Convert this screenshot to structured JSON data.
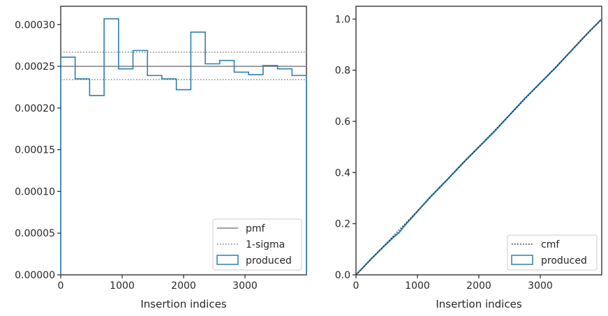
{
  "colors": {
    "produced": "#2e7fb0",
    "pmf": "#808080",
    "sigma": "#808080",
    "cmf": "#1a1a1a",
    "axes": "#262626"
  },
  "chart_data": [
    {
      "type": "histogram-step",
      "xlabel": "Insertion indices",
      "ylabel": "",
      "xlim": [
        0,
        4000
      ],
      "ylim": [
        0,
        0.000322
      ],
      "xticks": [
        0,
        1000,
        2000,
        3000
      ],
      "xtick_labels": [
        "0",
        "1000",
        "2000",
        "3000"
      ],
      "yticks": [
        0,
        5e-05,
        0.0001,
        0.00015,
        0.0002,
        0.00025,
        0.0003
      ],
      "ytick_labels": [
        "0.00000",
        "0.00005",
        "0.00010",
        "0.00015",
        "0.00020",
        "0.00025",
        "0.00030"
      ],
      "bin_edges": [
        0,
        235,
        470,
        706,
        941,
        1176,
        1412,
        1647,
        1882,
        2118,
        2353,
        2588,
        2824,
        3059,
        3294,
        3529,
        3765,
        4000
      ],
      "series": [
        {
          "name": "produced",
          "values": [
            0.000261,
            0.000235,
            0.000215,
            0.000307,
            0.000247,
            0.000269,
            0.000239,
            0.000235,
            0.000222,
            0.000291,
            0.000253,
            0.000257,
            0.000243,
            0.00024,
            0.000251,
            0.000247,
            0.000239
          ]
        }
      ],
      "reference_lines": [
        {
          "name": "pmf",
          "y": 0.00025,
          "style": "solid"
        },
        {
          "name": "1-sigma",
          "y": 0.000267,
          "style": "dotted"
        },
        {
          "name": "",
          "y": 0.000234,
          "style": "dotted"
        }
      ],
      "legend": {
        "placement": "lower-right",
        "entries": [
          "pmf",
          "1-sigma",
          "produced"
        ]
      },
      "grid": false
    },
    {
      "type": "line",
      "xlabel": "Insertion indices",
      "ylabel": "",
      "xlim": [
        0,
        4000
      ],
      "ylim": [
        0,
        1.05
      ],
      "xticks": [
        0,
        1000,
        2000,
        3000
      ],
      "xtick_labels": [
        "0",
        "1000",
        "2000",
        "3000"
      ],
      "yticks": [
        0,
        0.2,
        0.4,
        0.6,
        0.8,
        1.0
      ],
      "ytick_labels": [
        "0.0",
        "0.2",
        "0.4",
        "0.6",
        "0.8",
        "1.0"
      ],
      "series": [
        {
          "name": "cmf",
          "style": "dotted",
          "x": [
            0,
            4000
          ],
          "y": [
            0,
            1.0
          ]
        },
        {
          "name": "produced",
          "style": "step",
          "x": [
            0,
            250,
            500,
            600,
            700,
            800,
            1000,
            1200,
            1500,
            1750,
            2000,
            2250,
            2500,
            2750,
            3000,
            3250,
            3500,
            3750,
            4000
          ],
          "y": [
            0,
            0.063,
            0.122,
            0.145,
            0.165,
            0.195,
            0.248,
            0.302,
            0.376,
            0.44,
            0.5,
            0.56,
            0.625,
            0.69,
            0.75,
            0.81,
            0.875,
            0.94,
            1.0
          ]
        }
      ],
      "legend": {
        "placement": "lower-right",
        "entries": [
          "cmf",
          "produced"
        ]
      },
      "grid": false
    }
  ]
}
